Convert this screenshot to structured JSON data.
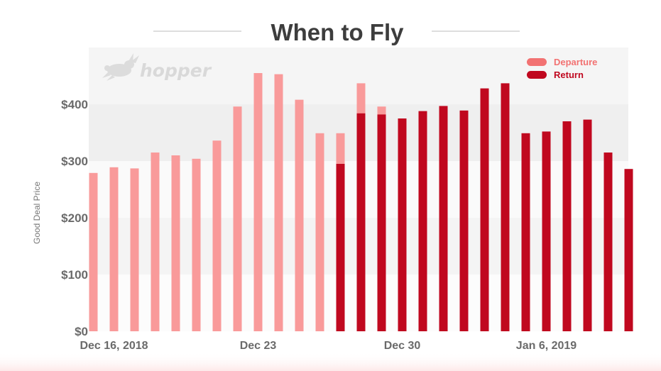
{
  "header": {
    "title": "When to Fly"
  },
  "logo": {
    "text": "hopper",
    "icon": "rabbit-icon"
  },
  "colors": {
    "departure": "#f99a9a",
    "return": "#c0081f",
    "departure_legend": "#f27272",
    "return_legend": "#c0081f",
    "title": "#3d3d3d",
    "axis_text": "#6a6a6a"
  },
  "chart_data": {
    "type": "bar",
    "title": "When to Fly",
    "xlabel": "",
    "ylabel": "Good Deal Price",
    "ylim": [
      0,
      500
    ],
    "yticks": [
      "$0",
      "$100",
      "$200",
      "$300",
      "$400"
    ],
    "ytick_values": [
      0,
      100,
      200,
      300,
      400
    ],
    "grid": false,
    "background_bands": true,
    "legend_position": "top-right",
    "x_tick_labels": [
      {
        "label": "Dec 16, 2018",
        "date": "2018-12-16"
      },
      {
        "label": "Dec 23",
        "date": "2018-12-23"
      },
      {
        "label": "Dec 30",
        "date": "2018-12-30"
      },
      {
        "label": "Jan 6, 2019",
        "date": "2019-01-06"
      }
    ],
    "series": [
      {
        "name": "Departure",
        "color": "#f99a9a",
        "points": [
          {
            "date": "2018-12-15",
            "value": 279
          },
          {
            "date": "2018-12-16",
            "value": 289
          },
          {
            "date": "2018-12-17",
            "value": 287
          },
          {
            "date": "2018-12-18",
            "value": 315
          },
          {
            "date": "2018-12-19",
            "value": 310
          },
          {
            "date": "2018-12-20",
            "value": 304
          },
          {
            "date": "2018-12-21",
            "value": 336
          },
          {
            "date": "2018-12-22",
            "value": 396
          },
          {
            "date": "2018-12-23",
            "value": 455
          },
          {
            "date": "2018-12-24",
            "value": 453
          },
          {
            "date": "2018-12-25",
            "value": 408
          },
          {
            "date": "2018-12-26",
            "value": 349
          },
          {
            "date": "2018-12-27",
            "value": 349
          },
          {
            "date": "2018-12-28",
            "value": 437
          },
          {
            "date": "2018-12-29",
            "value": 396
          }
        ]
      },
      {
        "name": "Return",
        "color": "#c0081f",
        "points": [
          {
            "date": "2018-12-27",
            "value": 295
          },
          {
            "date": "2018-12-28",
            "value": 384
          },
          {
            "date": "2018-12-29",
            "value": 382
          },
          {
            "date": "2018-12-30",
            "value": 375
          },
          {
            "date": "2018-12-31",
            "value": 388
          },
          {
            "date": "2019-01-01",
            "value": 397
          },
          {
            "date": "2019-01-02",
            "value": 389
          },
          {
            "date": "2019-01-03",
            "value": 428
          },
          {
            "date": "2019-01-04",
            "value": 437
          },
          {
            "date": "2019-01-05",
            "value": 349
          },
          {
            "date": "2019-01-06",
            "value": 352
          },
          {
            "date": "2019-01-07",
            "value": 370
          },
          {
            "date": "2019-01-08",
            "value": 373
          },
          {
            "date": "2019-01-09",
            "value": 315
          },
          {
            "date": "2019-01-10",
            "value": 286
          }
        ]
      }
    ]
  }
}
